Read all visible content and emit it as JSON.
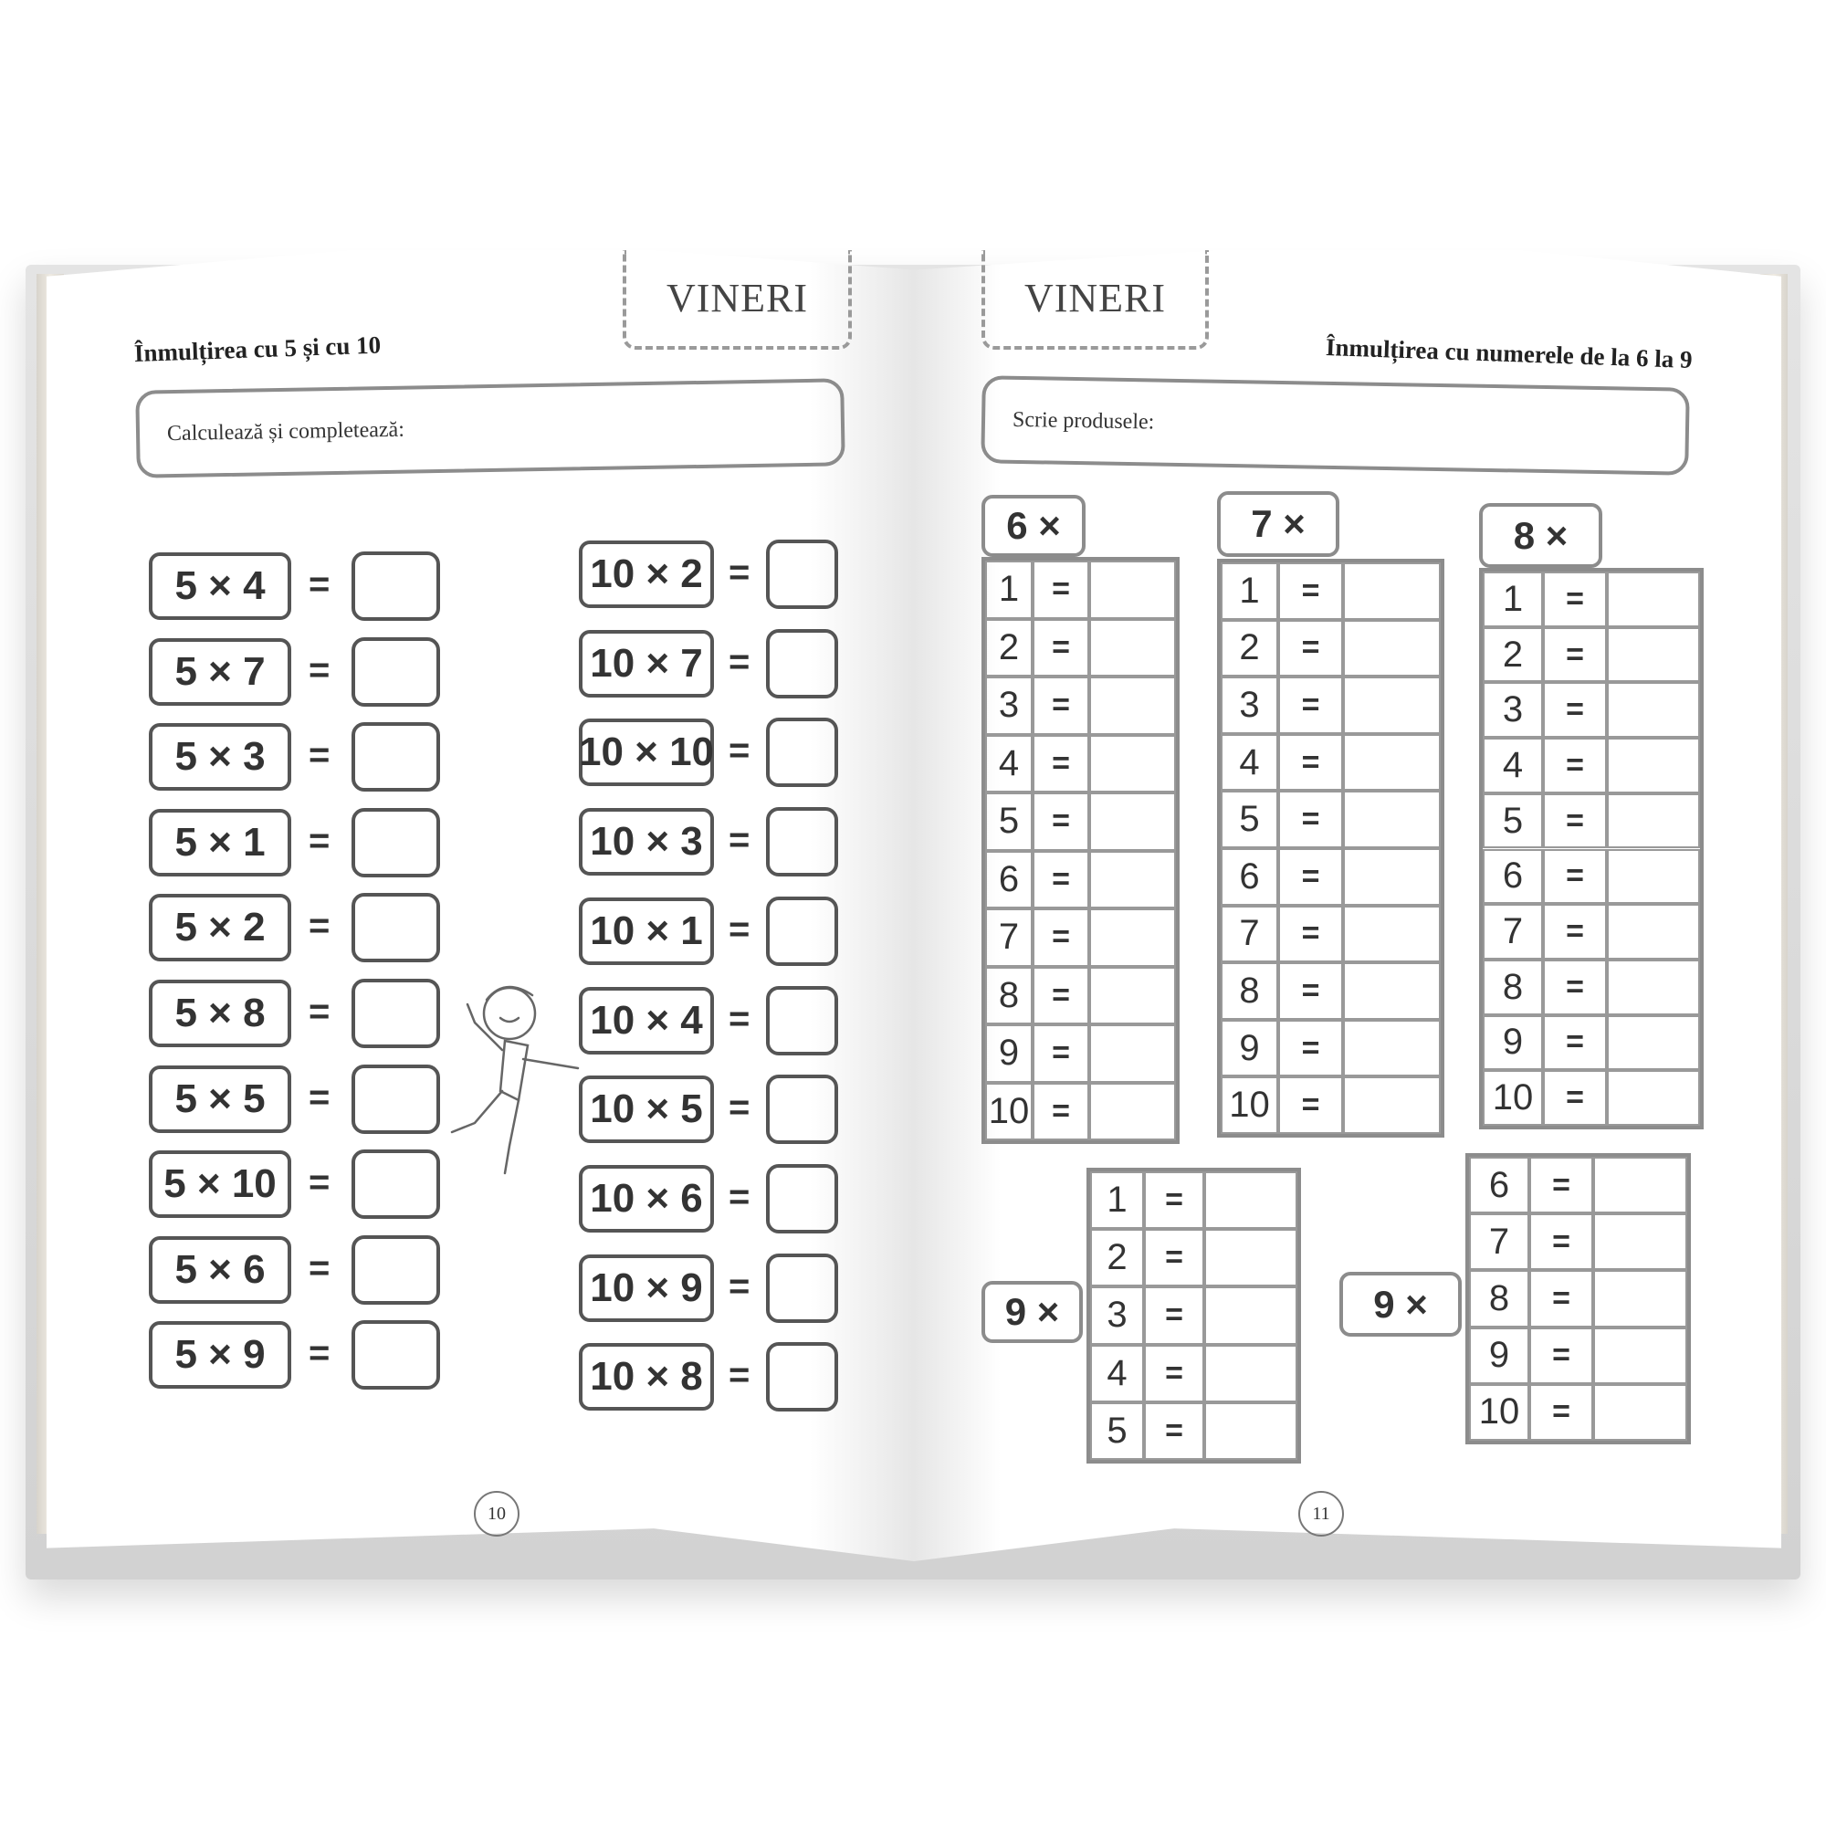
{
  "left_page": {
    "day_tag": "VINERI",
    "title": "Înmulțirea cu 5 și cu 10",
    "instruction": "Calculează și completează:",
    "equals": "=",
    "column_1": [
      "5 × 4",
      "5 × 7",
      "5 × 3",
      "5 × 1",
      "5 × 2",
      "5 × 8",
      "5 × 5",
      "5 × 10",
      "5 × 6",
      "5 × 9"
    ],
    "column_2": [
      "10 × 2",
      "10 × 7",
      "10 × 10",
      "10 × 3",
      "10 × 1",
      "10 × 4",
      "10 × 5",
      "10 × 6",
      "10 × 9",
      "10 × 8"
    ],
    "page_number": "10",
    "illustration": "dancing-boy"
  },
  "right_page": {
    "day_tag": "VINERI",
    "title": "Înmulțirea cu numerele de la 6 la 9",
    "instruction": "Scrie produsele:",
    "equals": "=",
    "tables": [
      {
        "label": "6 ×",
        "rows": [
          "1",
          "2",
          "3",
          "4",
          "5",
          "6",
          "7",
          "8",
          "9",
          "10"
        ]
      },
      {
        "label": "7 ×",
        "rows": [
          "1",
          "2",
          "3",
          "4",
          "5",
          "6",
          "7",
          "8",
          "9",
          "10"
        ]
      },
      {
        "label": "8 ×",
        "rows": [
          "1",
          "2",
          "3",
          "4",
          "5",
          "6",
          "7",
          "8",
          "9",
          "10"
        ]
      },
      {
        "label": "9 ×",
        "rows": [
          "1",
          "2",
          "3",
          "4",
          "5"
        ]
      },
      {
        "label": "9 ×",
        "rows": [
          "6",
          "7",
          "8",
          "9",
          "10"
        ]
      }
    ],
    "page_number": "11"
  }
}
